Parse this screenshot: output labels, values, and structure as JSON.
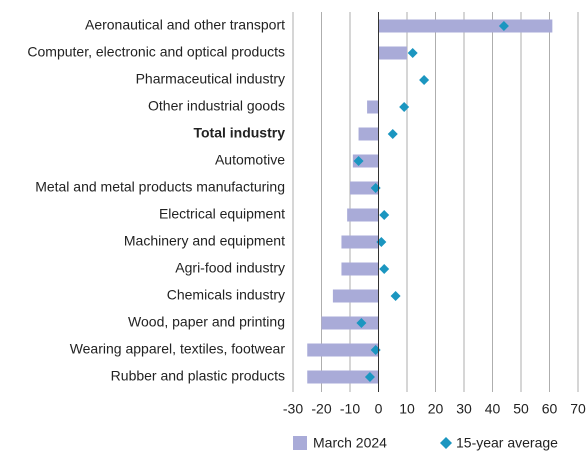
{
  "chart_data": {
    "type": "bar_dot",
    "categories": [
      "Aeronautical and other transport",
      "Computer, electronic and optical products",
      "Pharmaceutical industry",
      "Other industrial goods",
      "Total industry",
      "Automotive",
      "Metal and metal products manufacturing",
      "Electrical equipment",
      "Machinery and equipment",
      "Agri-food industry",
      "Chemicals industry",
      "Wood, paper and printing",
      "Wearing apparel, textiles, footwear",
      "Rubber and plastic products"
    ],
    "bold_category_index": 4,
    "series": [
      {
        "name": "March 2024",
        "color": "#a9abd8",
        "values": [
          61,
          10,
          0,
          -4,
          -7,
          -9,
          -10,
          -11,
          -13,
          -13,
          -16,
          -20,
          -25,
          -25
        ]
      },
      {
        "name": "15-year average",
        "color": "#1b96c0",
        "values": [
          44,
          12,
          16,
          9,
          5,
          -7,
          -1,
          2,
          1,
          2,
          6,
          -6,
          -1,
          -3
        ]
      }
    ],
    "xlim": [
      -30,
      70
    ],
    "xticks": [
      -30,
      -20,
      -10,
      0,
      10,
      20,
      30,
      40,
      50,
      60,
      70
    ],
    "grid": true
  }
}
